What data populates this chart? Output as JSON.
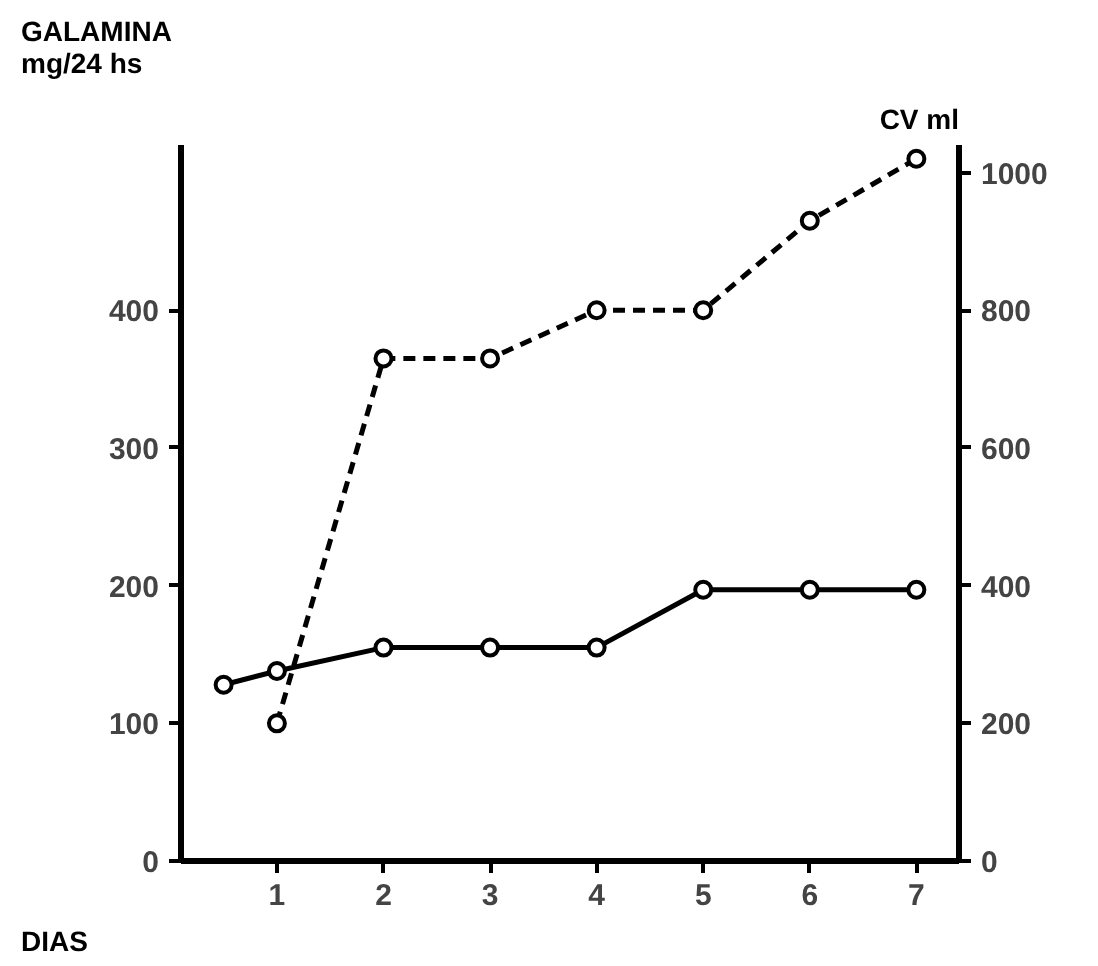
{
  "chart_data": {
    "type": "line",
    "xlabel": "DIAS",
    "ylabel": "GALAMINA\nmg/24 hs",
    "y2label": "CV ml",
    "xlim": [
      0.1,
      7.4
    ],
    "xticks": [
      1,
      2,
      3,
      4,
      5,
      6,
      7
    ],
    "ylim": [
      0,
      520
    ],
    "yticks": [
      0,
      100,
      200,
      300,
      400
    ],
    "y2lim": [
      0,
      1040
    ],
    "y2ticks": [
      0,
      200,
      400,
      600,
      800,
      1000
    ],
    "grid": false,
    "marker": "circle",
    "series": [
      {
        "color": "#000000",
        "x": [
          0.5,
          1,
          2,
          3,
          4,
          5,
          6,
          7
        ],
        "values": [
          128,
          138,
          155,
          155,
          155,
          197,
          197,
          197
        ],
        "line_style": "solid"
      },
      {
        "color": "#000000",
        "axis": "y2",
        "x": [
          1,
          2,
          3,
          4,
          5,
          6,
          7
        ],
        "values": [
          200,
          730,
          730,
          800,
          800,
          930,
          1020
        ],
        "line_style": "dashed"
      }
    ]
  }
}
